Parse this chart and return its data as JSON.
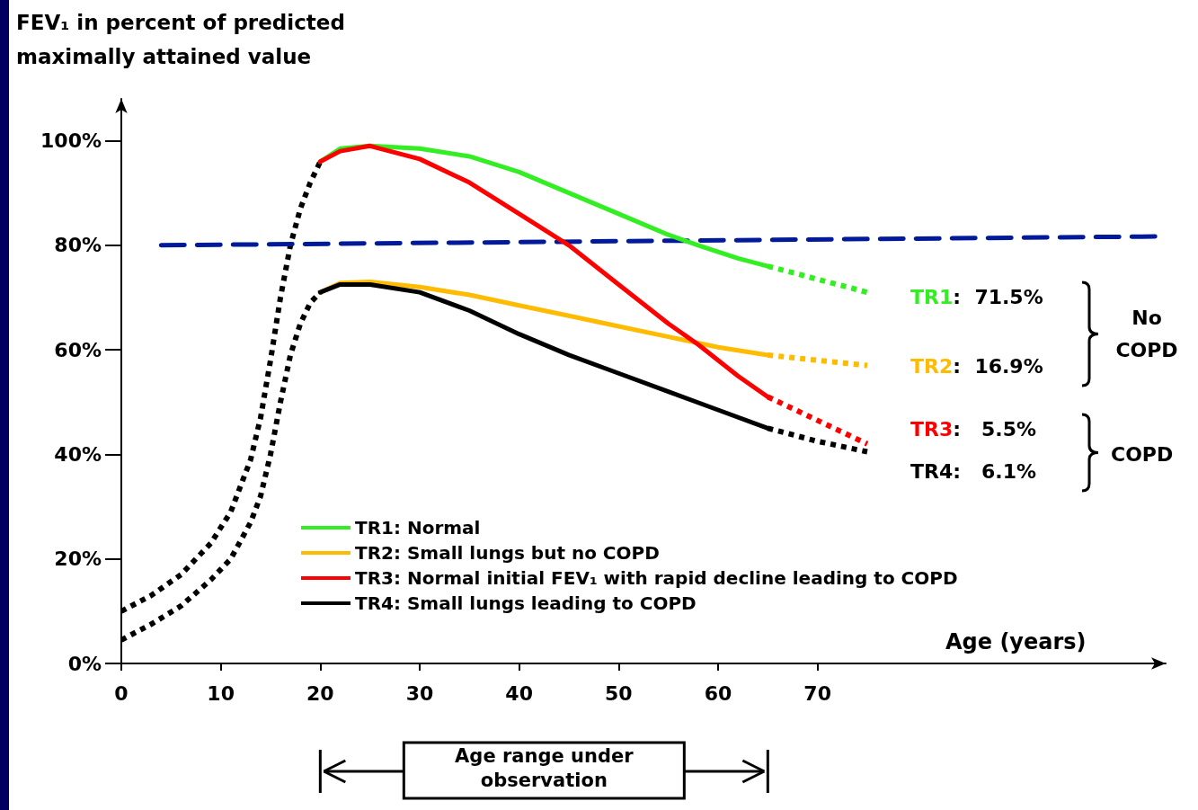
{
  "chart_data": {
    "type": "line",
    "ylabel": "FEV₁ in percent of predicted maximally attained value",
    "xlabel": "Age (years)",
    "xlim": [
      0,
      105
    ],
    "xticks": [
      0,
      10,
      20,
      30,
      40,
      50,
      60,
      70
    ],
    "ylim": [
      0,
      108
    ],
    "yticks": [
      {
        "value": 0,
        "label": "0%"
      },
      {
        "value": 20,
        "label": "20%"
      },
      {
        "value": 40,
        "label": "40%"
      },
      {
        "value": 60,
        "label": "60%"
      },
      {
        "value": 80,
        "label": "80%"
      },
      {
        "value": 100,
        "label": "100%"
      }
    ],
    "grid": false,
    "legend": "bottom",
    "marker": "none",
    "series": [
      {
        "name": "TR1: Normal",
        "color": "#33ee22",
        "line_style": "solid",
        "x": [
          20,
          22,
          25,
          30,
          35,
          40,
          45,
          50,
          55,
          58,
          62,
          65
        ],
        "values": [
          96,
          98.5,
          99,
          98.5,
          97,
          94,
          90,
          86,
          82,
          80,
          77.5,
          76
        ]
      },
      {
        "name": "TR2: Small lungs but no COPD",
        "color": "#ffbb00",
        "line_style": "solid",
        "x": [
          20,
          22,
          25,
          30,
          35,
          40,
          45,
          50,
          55,
          60,
          65
        ],
        "values": [
          71,
          72.8,
          73,
          72,
          70.5,
          68.5,
          66.5,
          64.5,
          62.5,
          60.5,
          59
        ]
      },
      {
        "name": "TR3: Normal initial FEV₁ with rapid decline leading to COPD",
        "color": "#ff0000",
        "line_style": "solid",
        "x": [
          20,
          22,
          25,
          30,
          35,
          40,
          45,
          50,
          55,
          58,
          62,
          65
        ],
        "values": [
          96,
          98,
          99,
          96.5,
          92,
          86,
          80,
          72.5,
          65,
          61,
          55,
          51
        ]
      },
      {
        "name": "TR4: Small lungs leading to COPD",
        "color": "#000000",
        "line_style": "solid",
        "x": [
          20,
          22,
          25,
          30,
          35,
          40,
          45,
          50,
          55,
          60,
          65
        ],
        "values": [
          71,
          72.5,
          72.5,
          71,
          67.5,
          63,
          59,
          55.5,
          52,
          48.5,
          45
        ]
      },
      {
        "color": "#33ee22",
        "line_style": "dotted",
        "x": [
          65,
          70,
          75
        ],
        "values": [
          76,
          73.5,
          71
        ]
      },
      {
        "color": "#ffbb00",
        "line_style": "dotted",
        "x": [
          65,
          70,
          75
        ],
        "values": [
          59,
          58,
          57
        ]
      },
      {
        "color": "#ff0000",
        "line_style": "dotted",
        "x": [
          65,
          70,
          75
        ],
        "values": [
          51,
          46.5,
          42
        ]
      },
      {
        "color": "#000000",
        "line_style": "dotted",
        "x": [
          65,
          70,
          75
        ],
        "values": [
          45,
          42.5,
          40.5
        ]
      },
      {
        "color": "#000000",
        "line_style": "dotted",
        "x": [
          0,
          3,
          6,
          9,
          11,
          13,
          14,
          15,
          16,
          17,
          18,
          19,
          20
        ],
        "values": [
          10,
          13,
          17,
          23,
          29,
          39,
          47,
          58,
          70,
          80,
          87,
          92,
          96
        ]
      },
      {
        "color": "#000000",
        "line_style": "dotted",
        "x": [
          0,
          3,
          6,
          9,
          11,
          13,
          14,
          15,
          16,
          17,
          18,
          19,
          20
        ],
        "values": [
          4.5,
          7.5,
          11,
          16,
          20,
          27,
          32,
          40,
          50,
          59,
          65,
          69,
          71
        ]
      },
      {
        "color": "#001a99",
        "line_style": "dashed",
        "x": [
          4,
          105
        ],
        "values": [
          80,
          81.7
        ]
      }
    ],
    "annotations": [
      "TR1:  71.5%",
      "TR2:  16.9%",
      "TR3:   5.5%",
      "TR4:   6.1%",
      "No COPD",
      "COPD",
      "Age range under observation"
    ]
  }
}
